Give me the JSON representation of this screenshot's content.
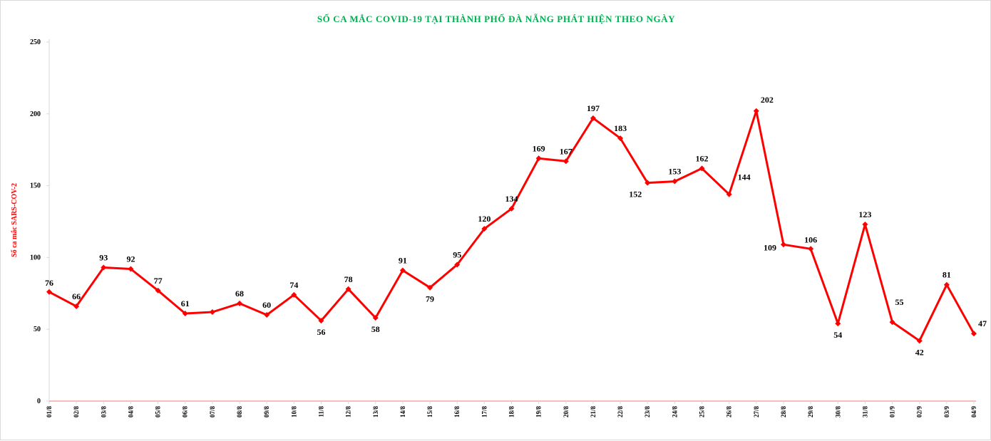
{
  "chart_data": {
    "type": "line",
    "title": "SỐ CA MẮC COVID-19 TẠI THÀNH PHỐ ĐÀ NẴNG PHÁT HIỆN THEO NGÀY",
    "xlabel": "",
    "ylabel": "Số ca mắc SARS-COV-2",
    "categories": [
      "01/8",
      "02/8",
      "03/8",
      "04/8",
      "05/8",
      "06/8",
      "07/8",
      "08/8",
      "09/8",
      "10/8",
      "11/8",
      "12/8",
      "13/8",
      "14/8",
      "15/8",
      "16/8",
      "17/8",
      "18/8",
      "19/8",
      "20/8",
      "21/8",
      "22/8",
      "23/8",
      "24/8",
      "25/8",
      "26/8",
      "27/8",
      "28/8",
      "29/8",
      "30/8",
      "31/8",
      "01/9",
      "02/9",
      "03/9",
      "04/9"
    ],
    "series": [
      {
        "values": [
          76,
          66,
          93,
          92,
          77,
          61,
          62,
          68,
          60,
          74,
          56,
          78,
          58,
          91,
          79,
          95,
          120,
          134,
          169,
          167,
          197,
          183,
          152,
          153,
          162,
          144,
          202,
          109,
          106,
          54,
          123,
          55,
          42,
          81,
          47
        ],
        "labels": [
          "76",
          "66",
          "93",
          "92",
          "77",
          "61",
          "",
          "68",
          "60",
          "74",
          "56",
          "78",
          "58",
          "91",
          "79",
          "95",
          "120",
          "134",
          "169",
          "167",
          "197",
          "183",
          "152",
          "153",
          "162",
          "144",
          "202",
          "109",
          "106",
          "54",
          "123",
          "55",
          "42",
          "81",
          "47"
        ]
      }
    ],
    "ylim": [
      0,
      250
    ],
    "yticks": [
      0,
      50,
      100,
      150,
      200,
      250
    ],
    "grid": false,
    "legend": "none",
    "colors": {
      "line": "#ff0000",
      "title": "#00b050",
      "ylabel": "#ff0000",
      "axis": "#d9d9d9",
      "baseline": "#f4a6a6"
    }
  }
}
